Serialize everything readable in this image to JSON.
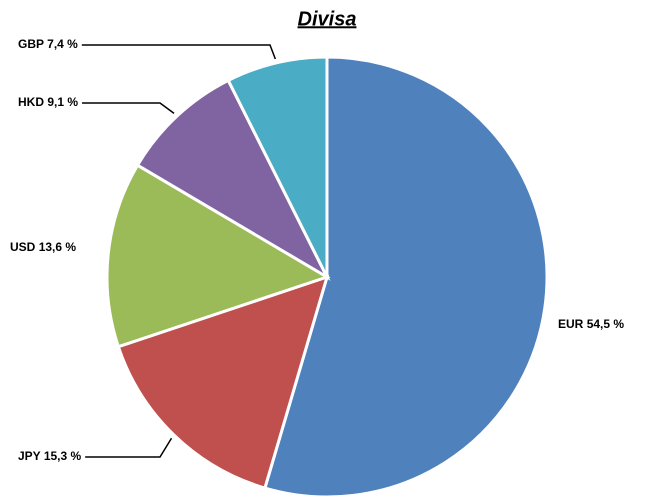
{
  "chart_data": {
    "type": "pie",
    "title": "Divisa",
    "categories": [
      "EUR",
      "JPY",
      "USD",
      "HKD",
      "GBP"
    ],
    "values": [
      54.5,
      15.3,
      13.6,
      9.1,
      7.4
    ],
    "value_labels": [
      "54,5 %",
      "15,3 %",
      "13,6 %",
      "9,1 %",
      "7,4 %"
    ],
    "colors": [
      "#4f81bd",
      "#c0504d",
      "#9bbb59",
      "#8064a2",
      "#4bacc6"
    ]
  }
}
